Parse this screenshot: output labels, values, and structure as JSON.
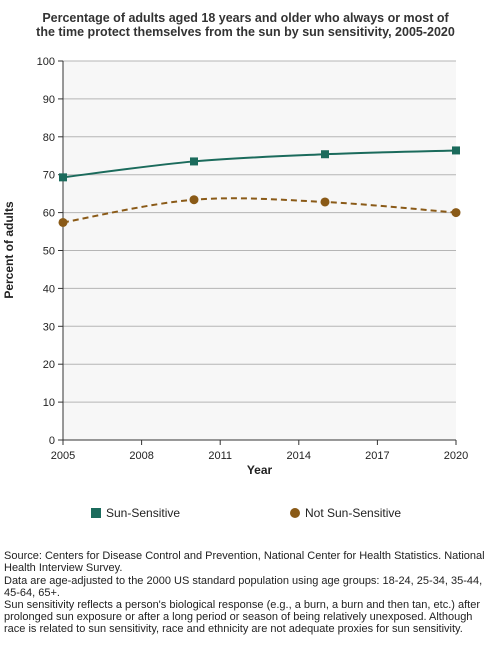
{
  "chart_data": {
    "type": "line",
    "title": "Percentage of adults aged 18 years and older who always or most of the time protect themselves from the sun by sun sensitivity, 2005-2020",
    "title_lines": [
      "Percentage of adults aged 18 years and older who always or most of",
      "the time protect themselves from the sun by sun sensitivity, 2005-2020"
    ],
    "xlabel": "Year",
    "ylabel": "Percent of adults",
    "xlim": [
      2005,
      2020
    ],
    "ylim": [
      0,
      100
    ],
    "x_ticks": [
      "2005",
      "2008",
      "2011",
      "2014",
      "2017",
      "2020"
    ],
    "y_ticks": [
      "0",
      "10",
      "20",
      "30",
      "40",
      "50",
      "60",
      "70",
      "80",
      "90",
      "100"
    ],
    "grid": true,
    "legend_position": "bottom",
    "series": [
      {
        "name": "Sun-Sensitive",
        "color": "#1b6b5c",
        "marker": "square",
        "line_style": "solid",
        "x": [
          2005,
          2010,
          2015,
          2020
        ],
        "values": [
          69.3,
          73.5,
          75.4,
          76.4
        ]
      },
      {
        "name": "Not Sun-Sensitive",
        "color": "#8a5a17",
        "marker": "circle",
        "line_style": "dashed",
        "x": [
          2005,
          2010,
          2015,
          2020
        ],
        "values": [
          57.4,
          63.4,
          62.8,
          60.0
        ]
      }
    ]
  },
  "footnotes": {
    "source": "Source: Centers for Disease Control and Prevention, National Center for Health Statistics. National Health Interview Survey.",
    "age_adjust": "Data are age-adjusted to the 2000 US standard population using age groups: 18-24, 25-34, 35-44, 45-64, 65+.",
    "definition": "Sun sensitivity reflects a person's biological response (e.g., a burn, a burn and then tan, etc.) after prolonged sun exposure or after a long period or season of being relatively unexposed. Although race is related to sun sensitivity, race and ethnicity are not adequate proxies for sun sensitivity."
  }
}
